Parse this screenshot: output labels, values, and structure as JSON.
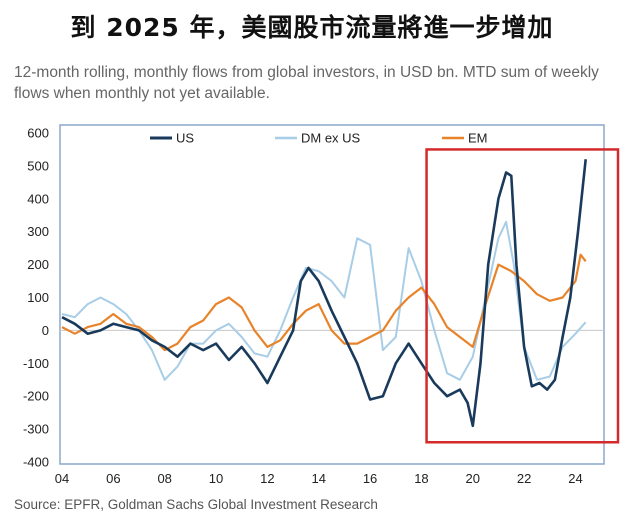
{
  "title": "到 2025 年，美國股市流量將進一步增加",
  "subtitle": "12-month rolling, monthly flows from global investors, in USD bn. MTD sum of weekly flows when monthly not yet available.",
  "source": "Source: EPFR, Goldman Sachs Global Investment Research",
  "colors": {
    "US": "#1a3a5c",
    "DM ex US": "#a8cde6",
    "EM": "#e8832a",
    "highlight": "#d42a2a"
  },
  "chart_data": {
    "type": "line",
    "title": "",
    "xlabel": "",
    "ylabel": "",
    "xlim": [
      2004,
      2024.8
    ],
    "ylim": [
      -400,
      600
    ],
    "yticks": [
      "600",
      "500",
      "400",
      "300",
      "200",
      "100",
      "0",
      "-100",
      "-200",
      "-300",
      "-400"
    ],
    "xticks": [
      "04",
      "06",
      "08",
      "10",
      "12",
      "14",
      "16",
      "18",
      "20",
      "22",
      "24"
    ],
    "legend": [
      "US",
      "DM ex US",
      "EM"
    ],
    "highlight_range": {
      "x": [
        2018.2,
        2024.8
      ],
      "y": [
        -340,
        550
      ]
    },
    "series": [
      {
        "name": "US",
        "x": [
          2004,
          2004.5,
          2005,
          2005.5,
          2006,
          2006.5,
          2007,
          2007.5,
          2008,
          2008.5,
          2009,
          2009.5,
          2010,
          2010.5,
          2011,
          2011.5,
          2012,
          2012.5,
          2013,
          2013.3,
          2013.6,
          2014,
          2014.5,
          2015,
          2015.5,
          2016,
          2016.5,
          2017,
          2017.5,
          2018,
          2018.5,
          2019,
          2019.5,
          2019.8,
          2020,
          2020.3,
          2020.6,
          2021,
          2021.3,
          2021.5,
          2021.7,
          2022,
          2022.3,
          2022.6,
          2022.9,
          2023.2,
          2023.5,
          2023.8,
          2024.1,
          2024.4
        ],
        "y": [
          40,
          20,
          -10,
          0,
          20,
          10,
          0,
          -30,
          -50,
          -80,
          -40,
          -60,
          -40,
          -90,
          -50,
          -100,
          -160,
          -80,
          0,
          150,
          190,
          150,
          60,
          -20,
          -100,
          -210,
          -200,
          -100,
          -40,
          -100,
          -160,
          -200,
          -180,
          -220,
          -290,
          -100,
          200,
          400,
          480,
          470,
          200,
          -50,
          -170,
          -160,
          -180,
          -150,
          -20,
          100,
          300,
          520
        ]
      },
      {
        "name": "DM ex US",
        "x": [
          2004,
          2004.5,
          2005,
          2005.5,
          2006,
          2006.5,
          2007,
          2007.5,
          2008,
          2008.5,
          2009,
          2009.5,
          2010,
          2010.5,
          2011,
          2011.5,
          2012,
          2012.5,
          2013,
          2013.5,
          2014,
          2014.5,
          2015,
          2015.5,
          2016,
          2016.5,
          2017,
          2017.5,
          2018,
          2018.5,
          2019,
          2019.5,
          2020,
          2020.5,
          2021,
          2021.3,
          2021.6,
          2022,
          2022.5,
          2023,
          2023.5,
          2024,
          2024.4
        ],
        "y": [
          50,
          40,
          80,
          100,
          80,
          50,
          0,
          -60,
          -150,
          -110,
          -40,
          -40,
          0,
          20,
          -20,
          -70,
          -80,
          0,
          100,
          190,
          180,
          150,
          100,
          280,
          260,
          -60,
          -20,
          250,
          150,
          0,
          -130,
          -150,
          -80,
          100,
          280,
          330,
          200,
          -50,
          -150,
          -140,
          -50,
          -10,
          25
        ]
      },
      {
        "name": "EM",
        "x": [
          2004,
          2004.5,
          2005,
          2005.5,
          2006,
          2006.5,
          2007,
          2007.5,
          2008,
          2008.5,
          2009,
          2009.5,
          2010,
          2010.5,
          2011,
          2011.5,
          2012,
          2012.5,
          2013,
          2013.5,
          2014,
          2014.5,
          2015,
          2015.5,
          2016,
          2016.5,
          2017,
          2017.5,
          2018,
          2018.5,
          2019,
          2019.5,
          2020,
          2020.5,
          2021,
          2021.5,
          2022,
          2022.5,
          2023,
          2023.5,
          2024,
          2024.2,
          2024.4
        ],
        "y": [
          10,
          -10,
          10,
          20,
          50,
          20,
          10,
          -20,
          -60,
          -40,
          10,
          30,
          80,
          100,
          70,
          0,
          -50,
          -30,
          20,
          60,
          80,
          0,
          -40,
          -40,
          -20,
          0,
          60,
          100,
          130,
          80,
          10,
          -20,
          -50,
          80,
          200,
          180,
          150,
          110,
          90,
          100,
          150,
          230,
          210
        ]
      }
    ]
  }
}
